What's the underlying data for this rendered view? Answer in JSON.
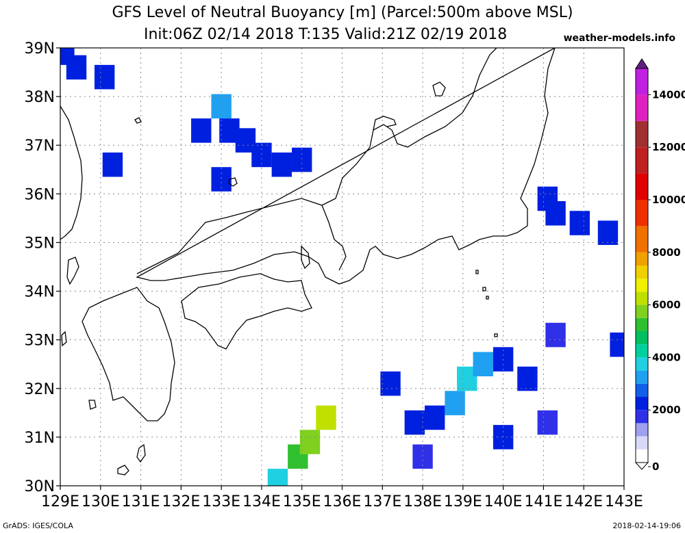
{
  "title": {
    "line1": "GFS Level of Neutral Buoyancy [m] (Parcel:500m above MSL)",
    "line2": "Init:06Z 02/14 2018 T:135 Valid:21Z 02/19 2018"
  },
  "credit": "weather-models.info",
  "footer": {
    "left": "GrADS: IGES/COLA",
    "right": "2018-02-14-19:06"
  },
  "map": {
    "lon_range": [
      129,
      143
    ],
    "lat_range": [
      30,
      39
    ],
    "lon_labels": [
      "129E",
      "130E",
      "131E",
      "132E",
      "133E",
      "134E",
      "135E",
      "136E",
      "137E",
      "138E",
      "139E",
      "140E",
      "141E",
      "142E",
      "143E"
    ],
    "lat_labels": [
      "30N",
      "31N",
      "32N",
      "33N",
      "34N",
      "35N",
      "36N",
      "37N",
      "38N",
      "39N"
    ],
    "gridlines": true,
    "grid_style": "dotted"
  },
  "colorbar": {
    "ticks": [
      "0",
      "2000",
      "4000",
      "6000",
      "8000",
      "10000",
      "12000",
      "14000"
    ],
    "range": [
      0,
      15000
    ],
    "colors": [
      {
        "v": 0,
        "c": "#ffffff"
      },
      {
        "v": 500,
        "c": "#d8d8f8"
      },
      {
        "v": 1000,
        "c": "#a0a0f0"
      },
      {
        "v": 1500,
        "c": "#3030e8"
      },
      {
        "v": 2000,
        "c": "#0020e0"
      },
      {
        "v": 2500,
        "c": "#1060e8"
      },
      {
        "v": 3000,
        "c": "#20a0f0"
      },
      {
        "v": 3500,
        "c": "#20d0e0"
      },
      {
        "v": 4000,
        "c": "#00d0a0"
      },
      {
        "v": 4500,
        "c": "#00c060"
      },
      {
        "v": 5000,
        "c": "#30c030"
      },
      {
        "v": 5500,
        "c": "#80d020"
      },
      {
        "v": 6000,
        "c": "#c0e000"
      },
      {
        "v": 6500,
        "c": "#f0f000"
      },
      {
        "v": 7000,
        "c": "#f0d000"
      },
      {
        "v": 7500,
        "c": "#f0a000"
      },
      {
        "v": 8000,
        "c": "#f07000"
      },
      {
        "v": 9000,
        "c": "#f03000"
      },
      {
        "v": 10000,
        "c": "#e00000"
      },
      {
        "v": 11000,
        "c": "#c02020"
      },
      {
        "v": 12000,
        "c": "#a03030"
      },
      {
        "v": 13000,
        "c": "#e020c0"
      },
      {
        "v": 14000,
        "c": "#c020e0"
      },
      {
        "v": 15000,
        "c": "#602080"
      }
    ]
  },
  "lnb_field": [
    {
      "lon": 129.1,
      "lat": 38.9,
      "v": 2200
    },
    {
      "lon": 129.4,
      "lat": 38.6,
      "v": 2200
    },
    {
      "lon": 130.1,
      "lat": 38.4,
      "v": 2200
    },
    {
      "lon": 133.0,
      "lat": 37.8,
      "v": 3200
    },
    {
      "lon": 132.5,
      "lat": 37.3,
      "v": 2200
    },
    {
      "lon": 133.2,
      "lat": 37.3,
      "v": 2400
    },
    {
      "lon": 133.6,
      "lat": 37.1,
      "v": 2000
    },
    {
      "lon": 134.0,
      "lat": 36.8,
      "v": 2000
    },
    {
      "lon": 134.5,
      "lat": 36.6,
      "v": 2000
    },
    {
      "lon": 135.0,
      "lat": 36.7,
      "v": 2200
    },
    {
      "lon": 133.0,
      "lat": 36.3,
      "v": 2000
    },
    {
      "lon": 130.3,
      "lat": 36.6,
      "v": 2200
    },
    {
      "lon": 141.1,
      "lat": 35.9,
      "v": 2400
    },
    {
      "lon": 141.3,
      "lat": 35.6,
      "v": 2200
    },
    {
      "lon": 141.9,
      "lat": 35.4,
      "v": 2000
    },
    {
      "lon": 142.6,
      "lat": 35.2,
      "v": 2400
    },
    {
      "lon": 134.4,
      "lat": 30.1,
      "v": 3800
    },
    {
      "lon": 134.9,
      "lat": 30.6,
      "v": 5000
    },
    {
      "lon": 135.2,
      "lat": 30.9,
      "v": 5500
    },
    {
      "lon": 135.6,
      "lat": 31.4,
      "v": 6000
    },
    {
      "lon": 137.2,
      "lat": 32.1,
      "v": 2200
    },
    {
      "lon": 137.8,
      "lat": 31.3,
      "v": 2000
    },
    {
      "lon": 138.3,
      "lat": 31.4,
      "v": 2400
    },
    {
      "lon": 138.8,
      "lat": 31.7,
      "v": 3200
    },
    {
      "lon": 139.1,
      "lat": 32.2,
      "v": 3500
    },
    {
      "lon": 139.5,
      "lat": 32.5,
      "v": 3300
    },
    {
      "lon": 140.0,
      "lat": 32.6,
      "v": 2400
    },
    {
      "lon": 140.6,
      "lat": 32.2,
      "v": 2000
    },
    {
      "lon": 138.0,
      "lat": 30.6,
      "v": 1800
    },
    {
      "lon": 140.0,
      "lat": 31.0,
      "v": 2000
    },
    {
      "lon": 141.3,
      "lat": 33.1,
      "v": 1800
    },
    {
      "lon": 142.9,
      "lat": 32.9,
      "v": 2200
    },
    {
      "lon": 141.1,
      "lat": 31.3,
      "v": 1800
    }
  ]
}
